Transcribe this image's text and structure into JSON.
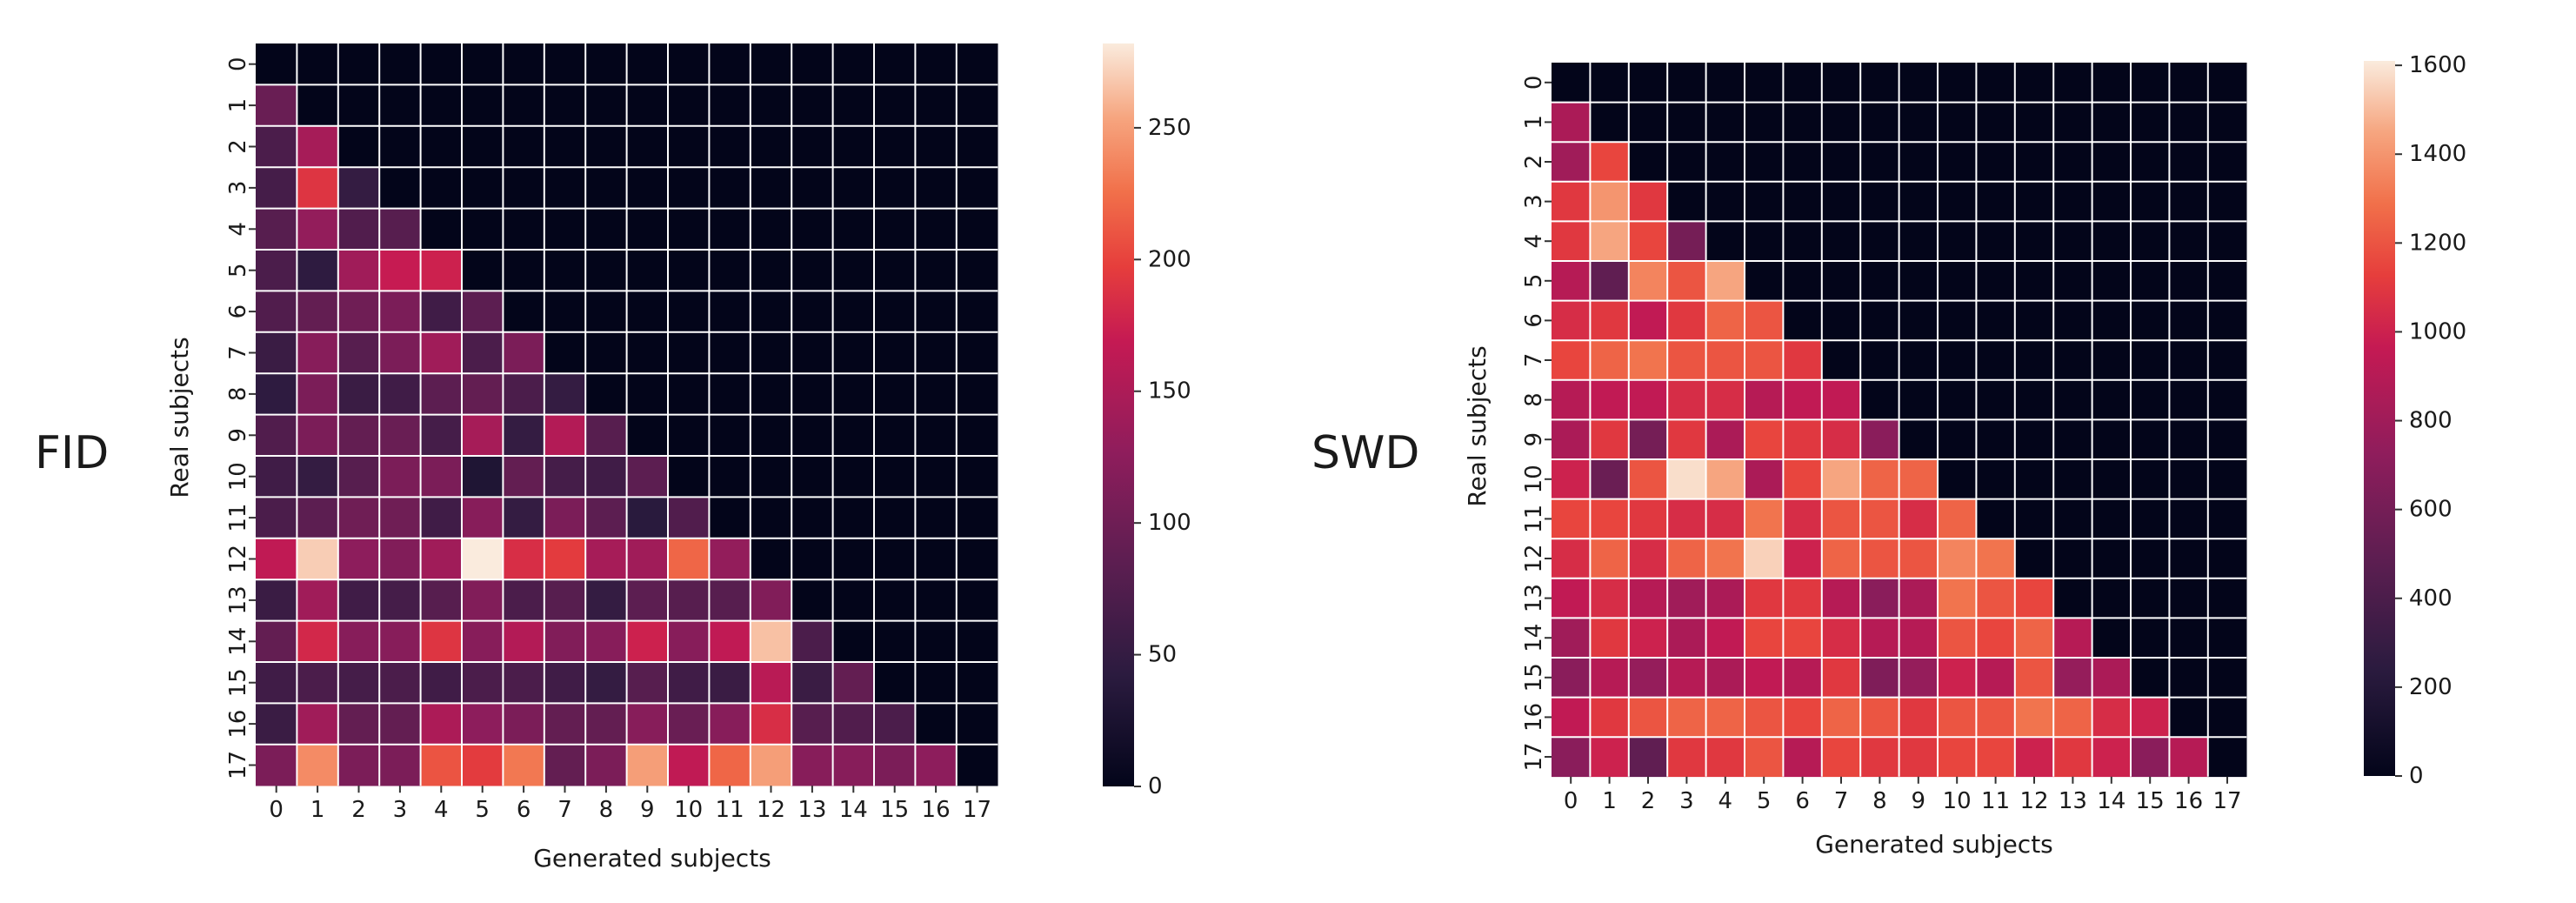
{
  "chart_data": [
    {
      "type": "heatmap",
      "title": "FID",
      "xlabel": "Generated subjects",
      "ylabel": "Real subjects",
      "x_categories": [
        "0",
        "1",
        "2",
        "3",
        "4",
        "5",
        "6",
        "7",
        "8",
        "9",
        "10",
        "11",
        "12",
        "13",
        "14",
        "15",
        "16",
        "17"
      ],
      "y_categories": [
        "0",
        "1",
        "2",
        "3",
        "4",
        "5",
        "6",
        "7",
        "8",
        "9",
        "10",
        "11",
        "12",
        "13",
        "14",
        "15",
        "16",
        "17"
      ],
      "colorbar": {
        "min": 0,
        "max": 282,
        "ticks": [
          "0",
          "50",
          "100",
          "150",
          "200",
          "250"
        ]
      },
      "values": [
        [
          0,
          0,
          0,
          0,
          0,
          0,
          0,
          0,
          0,
          0,
          0,
          0,
          0,
          0,
          0,
          0,
          0,
          0
        ],
        [
          95,
          0,
          0,
          0,
          0,
          0,
          0,
          0,
          0,
          0,
          0,
          0,
          0,
          0,
          0,
          0,
          0,
          0
        ],
        [
          70,
          145,
          0,
          0,
          0,
          0,
          0,
          0,
          0,
          0,
          0,
          0,
          0,
          0,
          0,
          0,
          0,
          0
        ],
        [
          65,
          190,
          50,
          0,
          0,
          0,
          0,
          0,
          0,
          0,
          0,
          0,
          0,
          0,
          0,
          0,
          0,
          0
        ],
        [
          80,
          130,
          75,
          80,
          0,
          0,
          0,
          0,
          0,
          0,
          0,
          0,
          0,
          0,
          0,
          0,
          0,
          0
        ],
        [
          70,
          45,
          140,
          170,
          175,
          0,
          0,
          0,
          0,
          0,
          0,
          0,
          0,
          0,
          0,
          0,
          0,
          0
        ],
        [
          75,
          90,
          100,
          110,
          60,
          85,
          0,
          0,
          0,
          0,
          0,
          0,
          0,
          0,
          0,
          0,
          0,
          0
        ],
        [
          55,
          120,
          80,
          110,
          140,
          70,
          110,
          0,
          0,
          0,
          0,
          0,
          0,
          0,
          0,
          0,
          0,
          0
        ],
        [
          45,
          110,
          55,
          60,
          85,
          90,
          70,
          50,
          0,
          0,
          0,
          0,
          0,
          0,
          0,
          0,
          0,
          0
        ],
        [
          75,
          110,
          90,
          95,
          65,
          145,
          50,
          155,
          80,
          0,
          0,
          0,
          0,
          0,
          0,
          0,
          0,
          0
        ],
        [
          60,
          50,
          80,
          110,
          110,
          30,
          90,
          65,
          60,
          85,
          0,
          0,
          0,
          0,
          0,
          0,
          0,
          0
        ],
        [
          70,
          85,
          100,
          100,
          60,
          120,
          50,
          110,
          85,
          40,
          75,
          0,
          0,
          0,
          0,
          0,
          0,
          0
        ],
        [
          165,
          270,
          125,
          115,
          140,
          282,
          185,
          195,
          145,
          140,
          220,
          130,
          0,
          0,
          0,
          0,
          0,
          0
        ],
        [
          55,
          140,
          60,
          65,
          80,
          115,
          70,
          80,
          50,
          85,
          80,
          80,
          115,
          0,
          0,
          0,
          0,
          0
        ],
        [
          90,
          180,
          120,
          120,
          190,
          120,
          155,
          115,
          120,
          175,
          120,
          165,
          265,
          70,
          0,
          0,
          0,
          0
        ],
        [
          60,
          70,
          65,
          70,
          60,
          70,
          70,
          60,
          50,
          80,
          60,
          55,
          160,
          55,
          90,
          0,
          0,
          0
        ],
        [
          55,
          140,
          90,
          90,
          150,
          125,
          110,
          90,
          90,
          120,
          95,
          120,
          185,
          80,
          75,
          70,
          0,
          0
        ],
        [
          110,
          240,
          110,
          110,
          210,
          195,
          230,
          90,
          110,
          250,
          165,
          220,
          250,
          120,
          120,
          110,
          125,
          0
        ]
      ]
    },
    {
      "type": "heatmap",
      "title": "SWD",
      "xlabel": "Generated subjects",
      "ylabel": "Real subjects",
      "x_categories": [
        "0",
        "1",
        "2",
        "3",
        "4",
        "5",
        "6",
        "7",
        "8",
        "9",
        "10",
        "11",
        "12",
        "13",
        "14",
        "15",
        "16",
        "17"
      ],
      "y_categories": [
        "0",
        "1",
        "2",
        "3",
        "4",
        "5",
        "6",
        "7",
        "8",
        "9",
        "10",
        "11",
        "12",
        "13",
        "14",
        "15",
        "16",
        "17"
      ],
      "colorbar": {
        "min": 0,
        "max": 1610,
        "ticks": [
          "0",
          "200",
          "400",
          "600",
          "800",
          "1000",
          "1200",
          "1400",
          "1600"
        ]
      },
      "values": [
        [
          0,
          0,
          0,
          0,
          0,
          0,
          0,
          0,
          0,
          0,
          0,
          0,
          0,
          0,
          0,
          0,
          0,
          0
        ],
        [
          850,
          0,
          0,
          0,
          0,
          0,
          0,
          0,
          0,
          0,
          0,
          0,
          0,
          0,
          0,
          0,
          0,
          0
        ],
        [
          800,
          1150,
          0,
          0,
          0,
          0,
          0,
          0,
          0,
          0,
          0,
          0,
          0,
          0,
          0,
          0,
          0,
          0
        ],
        [
          1100,
          1400,
          1100,
          0,
          0,
          0,
          0,
          0,
          0,
          0,
          0,
          0,
          0,
          0,
          0,
          0,
          0,
          0
        ],
        [
          1100,
          1450,
          1150,
          600,
          0,
          0,
          0,
          0,
          0,
          0,
          0,
          0,
          0,
          0,
          0,
          0,
          0,
          0
        ],
        [
          900,
          500,
          1350,
          1200,
          1450,
          0,
          0,
          0,
          0,
          0,
          0,
          0,
          0,
          0,
          0,
          0,
          0,
          0
        ],
        [
          1050,
          1100,
          950,
          1100,
          1250,
          1200,
          0,
          0,
          0,
          0,
          0,
          0,
          0,
          0,
          0,
          0,
          0,
          0
        ],
        [
          1150,
          1250,
          1300,
          1200,
          1200,
          1200,
          1100,
          0,
          0,
          0,
          0,
          0,
          0,
          0,
          0,
          0,
          0,
          0
        ],
        [
          900,
          950,
          950,
          1050,
          1050,
          900,
          950,
          950,
          0,
          0,
          0,
          0,
          0,
          0,
          0,
          0,
          0,
          0
        ],
        [
          850,
          1100,
          600,
          1100,
          850,
          1150,
          1100,
          1050,
          700,
          0,
          0,
          0,
          0,
          0,
          0,
          0,
          0,
          0
        ],
        [
          1000,
          550,
          1200,
          1580,
          1450,
          850,
          1150,
          1450,
          1250,
          1250,
          0,
          0,
          0,
          0,
          0,
          0,
          0,
          0
        ],
        [
          1150,
          1150,
          1100,
          1050,
          1050,
          1300,
          1050,
          1200,
          1200,
          1050,
          1250,
          0,
          0,
          0,
          0,
          0,
          0,
          0
        ],
        [
          1050,
          1250,
          1050,
          1250,
          1300,
          1550,
          1000,
          1250,
          1200,
          1200,
          1350,
          1300,
          0,
          0,
          0,
          0,
          0,
          0
        ],
        [
          950,
          1050,
          900,
          800,
          850,
          1100,
          1100,
          900,
          700,
          850,
          1300,
          1200,
          1150,
          0,
          0,
          0,
          0,
          0
        ],
        [
          800,
          1100,
          1000,
          850,
          950,
          1150,
          1150,
          1050,
          900,
          900,
          1200,
          1150,
          1250,
          900,
          0,
          0,
          0,
          0
        ],
        [
          700,
          900,
          750,
          900,
          850,
          950,
          900,
          1100,
          650,
          750,
          1000,
          900,
          1200,
          750,
          850,
          0,
          0,
          0
        ],
        [
          950,
          1100,
          1200,
          1250,
          1250,
          1200,
          1150,
          1250,
          1200,
          1100,
          1200,
          1200,
          1300,
          1250,
          1050,
          1000,
          0,
          0
        ],
        [
          700,
          1000,
          500,
          1100,
          1100,
          1200,
          900,
          1150,
          1100,
          1100,
          1150,
          1150,
          1000,
          1100,
          1000,
          700,
          900,
          0
        ]
      ]
    }
  ]
}
